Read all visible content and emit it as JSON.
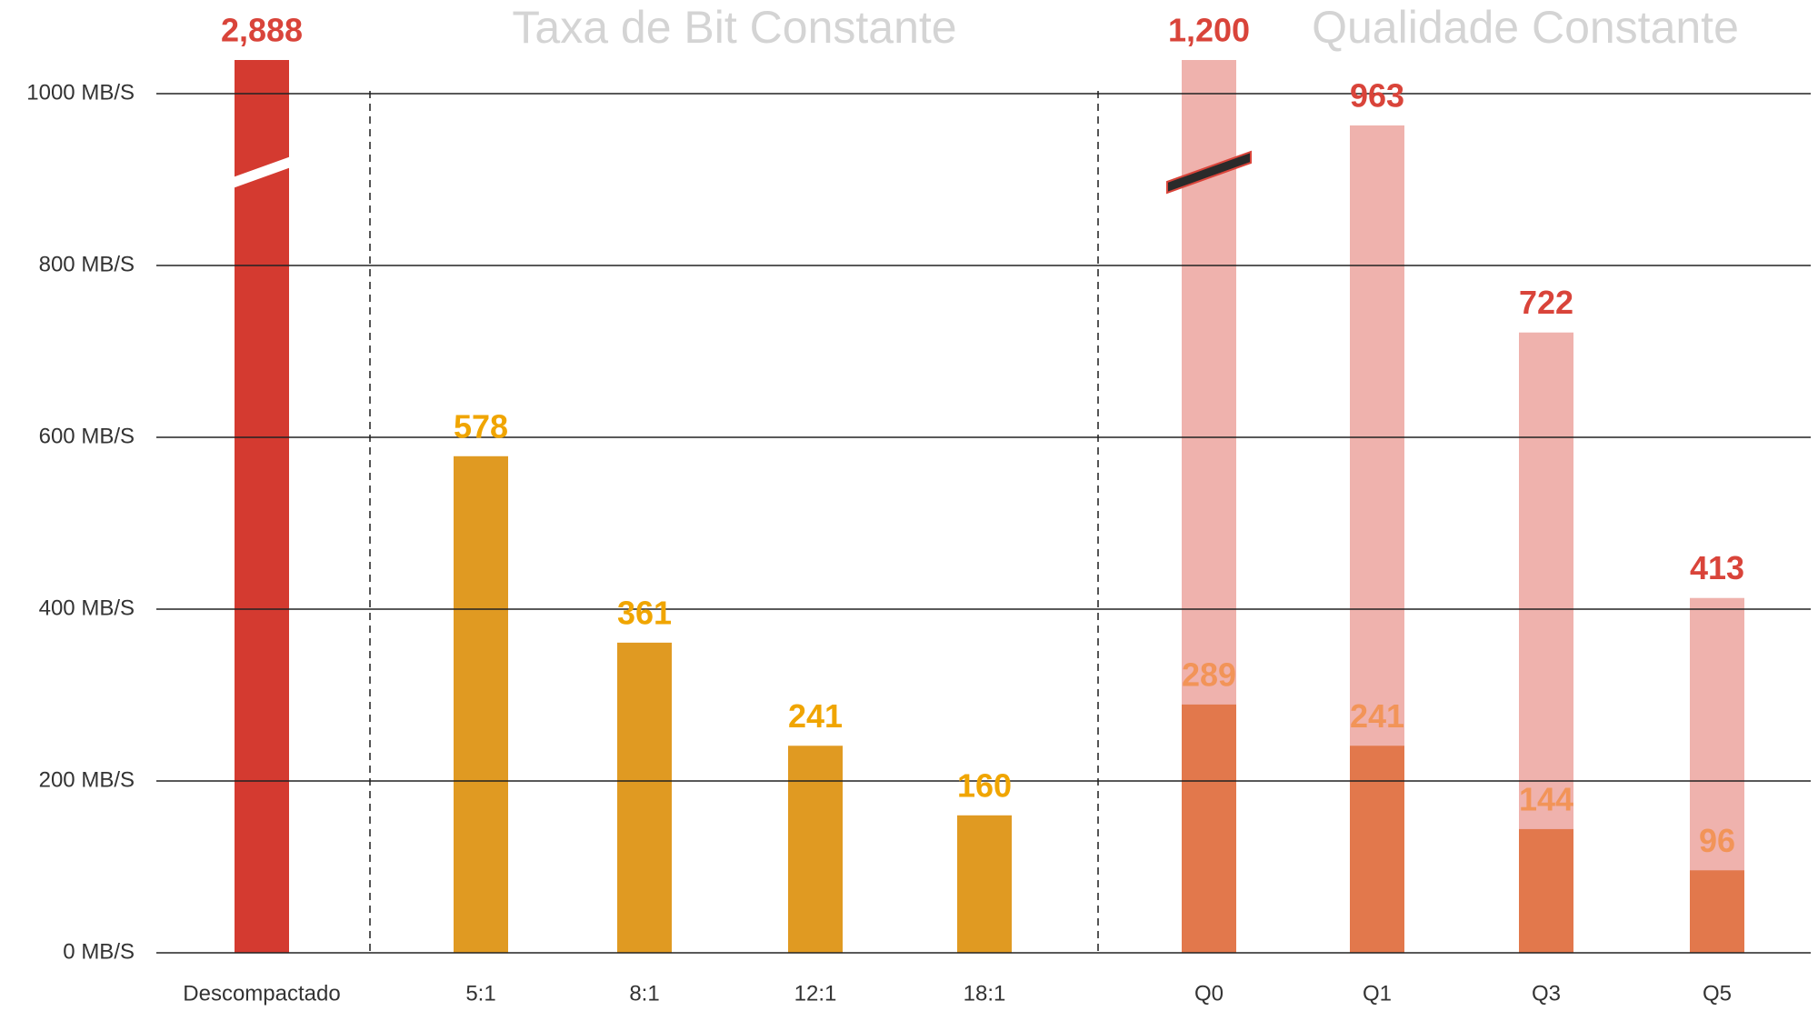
{
  "chart_data": {
    "type": "bar",
    "annotations": [
      "Taxa de Bit Constante",
      "Qualidade Constante"
    ],
    "categories": [
      "Descompactado",
      "5:1",
      "8:1",
      "12:1",
      "18:1",
      "Q0",
      "Q1",
      "Q3",
      "Q5"
    ],
    "series": [
      {
        "colors": [
          "#d43a30",
          "#e09a22",
          "#e09a22",
          "#e09a22",
          "#e09a22",
          "#efb2ad",
          "#efb2ad",
          "#efb2ad",
          "#efb2ad"
        ],
        "label_colors": [
          "#d9443a",
          "#f0a500",
          "#f0a500",
          "#f0a500",
          "#f0a500",
          "#d9443a",
          "#d9443a",
          "#d9443a",
          "#d9443a"
        ],
        "values": [
          2888,
          578,
          361,
          241,
          160,
          1200,
          963,
          722,
          413
        ],
        "value_labels": [
          "2,888",
          "578",
          "361",
          "241",
          "160",
          "1,200",
          "963",
          "722",
          "413"
        ]
      },
      {
        "color": "#e2784c",
        "label_color": "#f29458",
        "values": [
          null,
          null,
          null,
          null,
          null,
          289,
          241,
          144,
          96
        ]
      }
    ],
    "ylim": [
      0,
      1040
    ],
    "yticks": [
      {
        "value": 0,
        "label": "0 MB/S"
      },
      {
        "value": 200,
        "label": "200 MB/S"
      },
      {
        "value": 400,
        "label": "400 MB/S"
      },
      {
        "value": 600,
        "label": "600 MB/S"
      },
      {
        "value": 800,
        "label": "800 MB/S"
      },
      {
        "value": 1000,
        "label": "1000 MB/S"
      }
    ],
    "grid": true
  }
}
